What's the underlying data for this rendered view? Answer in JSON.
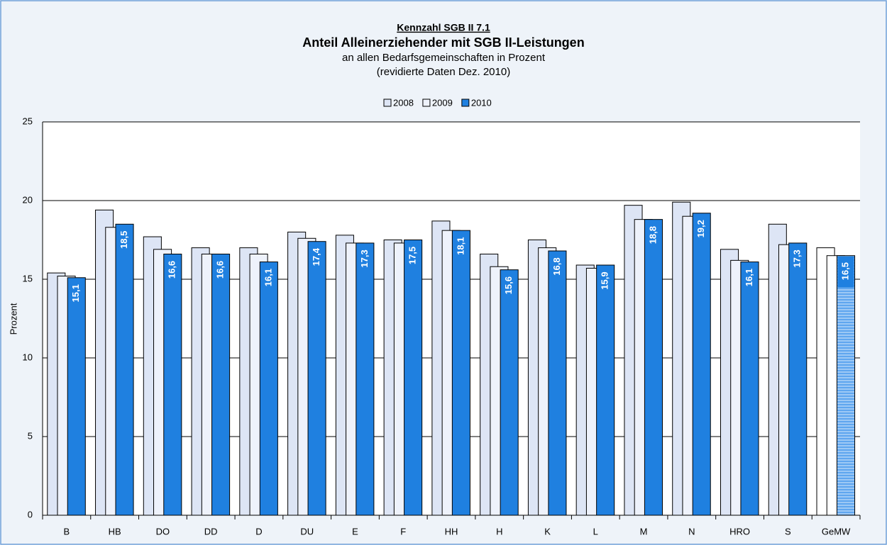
{
  "chart_data": {
    "type": "bar",
    "kicker": "Kennzahl SGB II 7.1",
    "title": "Anteil Alleinerziehender mit SGB II-Leistungen",
    "subtitle_lines": [
      "an allen Bedarfsgemeinschaften in Prozent",
      "(revidierte Daten Dez. 2010)"
    ],
    "y_label": "Prozent",
    "categories": [
      "B",
      "HB",
      "DO",
      "DD",
      "D",
      "DU",
      "E",
      "F",
      "HH",
      "H",
      "K",
      "L",
      "M",
      "N",
      "HRO",
      "S",
      "GeMW"
    ],
    "series": [
      {
        "name": "2008",
        "color": "#dde5f5",
        "values": [
          15.4,
          19.4,
          17.7,
          17.0,
          17.0,
          18.0,
          17.8,
          17.5,
          18.7,
          16.6,
          17.5,
          15.9,
          19.7,
          19.9,
          16.9,
          18.5,
          17.0
        ]
      },
      {
        "name": "2009",
        "color": "#eef2fb",
        "values": [
          15.2,
          18.3,
          16.9,
          16.6,
          16.6,
          17.6,
          17.3,
          17.3,
          18.1,
          15.8,
          17.0,
          15.7,
          18.8,
          19.0,
          16.2,
          17.2,
          16.5
        ]
      },
      {
        "name": "2010",
        "color": "#1f80e0",
        "values": [
          15.1,
          18.5,
          16.6,
          16.6,
          16.1,
          17.4,
          17.3,
          17.5,
          18.1,
          15.6,
          16.8,
          15.9,
          18.8,
          19.2,
          16.1,
          17.3,
          16.5
        ],
        "value_labels": [
          "15,1",
          "18,5",
          "16,6",
          "16,6",
          "16,1",
          "17,4",
          "17,3",
          "17,5",
          "18,1",
          "15,6",
          "16,8",
          "15,9",
          "18,8",
          "19,2",
          "16,1",
          "17,3",
          "16,5"
        ]
      }
    ],
    "ylim": [
      0,
      25
    ],
    "yticks": [
      0,
      5,
      10,
      15,
      20,
      25
    ],
    "grid": true,
    "legend": "top"
  }
}
